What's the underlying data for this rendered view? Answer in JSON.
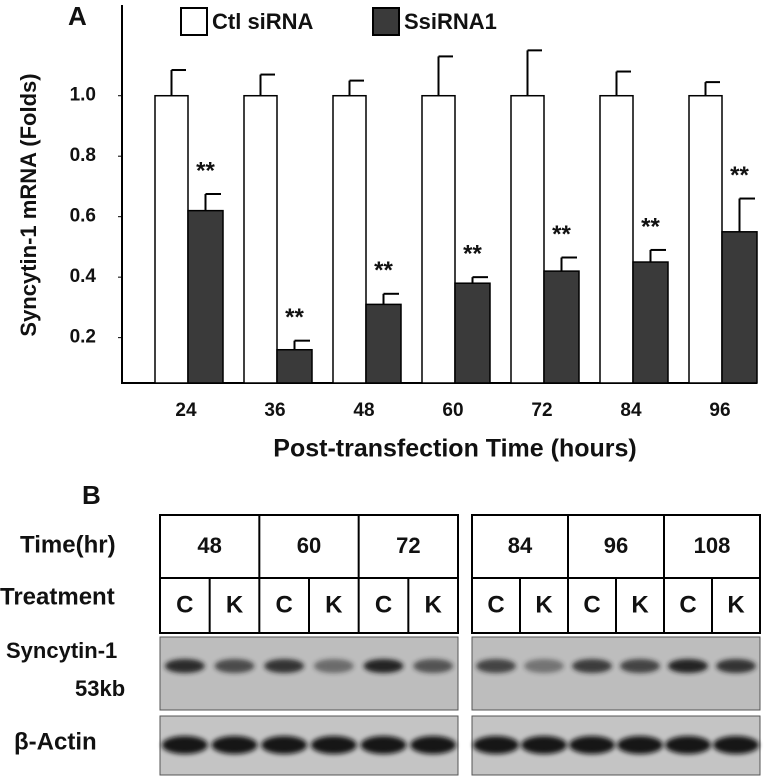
{
  "chart_data": {
    "type": "bar",
    "panel_label": "A",
    "y_label": "Syncytin-1 mRNA (Folds)",
    "x_label": "Post-transfection Time (hours)",
    "categories": [
      "24",
      "36",
      "48",
      "60",
      "72",
      "84",
      "96"
    ],
    "series": [
      {
        "name": "Ctl siRNA",
        "color": "#ffffff",
        "values": [
          1.0,
          1.0,
          1.0,
          1.0,
          1.0,
          1.0,
          1.0
        ],
        "errors": [
          0.085,
          0.07,
          0.05,
          0.13,
          0.15,
          0.08,
          0.045
        ]
      },
      {
        "name": "SsiRNA1",
        "color": "#3a3a3a",
        "values": [
          0.62,
          0.16,
          0.31,
          0.38,
          0.42,
          0.45,
          0.55
        ],
        "errors": [
          0.055,
          0.03,
          0.035,
          0.02,
          0.045,
          0.04,
          0.11
        ]
      }
    ],
    "significance": [
      "**",
      "**",
      "**",
      "**",
      "**",
      "**",
      "**"
    ],
    "ylim": [
      0.05,
      1.3
    ],
    "yticks": [
      0.2,
      0.4,
      0.6,
      0.8,
      {
        "value": 1.0,
        "label": "1.0"
      }
    ],
    "grid": false
  },
  "blot": {
    "panel_label": "B",
    "time_label": "Time(hr)",
    "times": [
      "48",
      "60",
      "72",
      "84",
      "96",
      "108"
    ],
    "treatment_label": "Treatment",
    "lanes": [
      "C",
      "K",
      "C",
      "K",
      "C",
      "K",
      "C",
      "K",
      "C",
      "K",
      "C",
      "K"
    ],
    "rows": [
      {
        "label": "Syncytin-1",
        "sublabel": "53kb"
      },
      {
        "label": "β-Actin"
      }
    ]
  }
}
